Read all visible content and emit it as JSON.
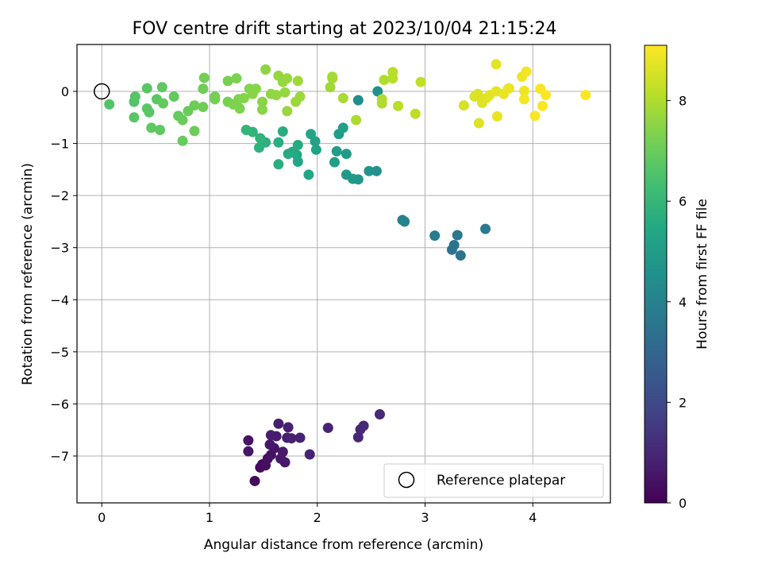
{
  "chart_data": {
    "type": "scatter",
    "title": "FOV centre drift starting at 2023/10/04 21:15:24",
    "xlabel": "Angular distance from reference (arcmin)",
    "ylabel": "Rotation from reference (arcmin)",
    "xlim": [
      -0.23,
      4.72
    ],
    "ylim": [
      -7.9,
      0.9
    ],
    "xticks": [
      0,
      1,
      2,
      3,
      4
    ],
    "yticks": [
      0,
      -1,
      -2,
      -3,
      -4,
      -5,
      -6,
      -7
    ],
    "grid": true,
    "colorbar": {
      "label": "Hours from first FF file",
      "colormap": "viridis",
      "range": [
        0,
        9.1
      ],
      "ticks": [
        0,
        2,
        4,
        6,
        8
      ]
    },
    "reference": {
      "x": 0,
      "y": 0,
      "label": "Reference platepar"
    },
    "legend": {
      "placement": "lower-right",
      "entries": [
        "Reference platepar"
      ]
    },
    "points": [
      {
        "x": 1.42,
        "y": -7.48,
        "h": 0.2
      },
      {
        "x": 1.47,
        "y": -7.22,
        "h": 0.25
      },
      {
        "x": 1.49,
        "y": -7.16,
        "h": 0.3
      },
      {
        "x": 1.52,
        "y": -7.18,
        "h": 0.35
      },
      {
        "x": 1.54,
        "y": -7.05,
        "h": 0.4
      },
      {
        "x": 1.57,
        "y": -6.98,
        "h": 0.45
      },
      {
        "x": 1.6,
        "y": -6.85,
        "h": 0.5
      },
      {
        "x": 1.56,
        "y": -6.78,
        "h": 0.55
      },
      {
        "x": 1.66,
        "y": -7.05,
        "h": 0.6
      },
      {
        "x": 1.7,
        "y": -7.12,
        "h": 0.62
      },
      {
        "x": 1.68,
        "y": -6.92,
        "h": 0.65
      },
      {
        "x": 1.72,
        "y": -6.65,
        "h": 0.7
      },
      {
        "x": 1.62,
        "y": -6.62,
        "h": 0.72
      },
      {
        "x": 1.57,
        "y": -6.6,
        "h": 0.75
      },
      {
        "x": 1.64,
        "y": -6.38,
        "h": 0.78
      },
      {
        "x": 1.73,
        "y": -6.45,
        "h": 0.8
      },
      {
        "x": 1.76,
        "y": -6.66,
        "h": 0.82
      },
      {
        "x": 1.84,
        "y": -6.65,
        "h": 0.85
      },
      {
        "x": 1.93,
        "y": -6.97,
        "h": 0.88
      },
      {
        "x": 1.36,
        "y": -6.7,
        "h": 0.5
      },
      {
        "x": 1.36,
        "y": -6.91,
        "h": 0.55
      },
      {
        "x": 2.1,
        "y": -6.46,
        "h": 0.9
      },
      {
        "x": 2.38,
        "y": -6.64,
        "h": 0.95
      },
      {
        "x": 2.4,
        "y": -6.49,
        "h": 1.0
      },
      {
        "x": 2.43,
        "y": -6.42,
        "h": 1.0
      },
      {
        "x": 2.58,
        "y": -6.2,
        "h": 1.05
      },
      {
        "x": 3.56,
        "y": -2.64,
        "h": 3.7
      },
      {
        "x": 3.3,
        "y": -2.76,
        "h": 3.6
      },
      {
        "x": 3.27,
        "y": -2.95,
        "h": 3.55
      },
      {
        "x": 3.25,
        "y": -3.04,
        "h": 3.5
      },
      {
        "x": 3.33,
        "y": -3.15,
        "h": 3.45
      },
      {
        "x": 3.09,
        "y": -2.77,
        "h": 3.8
      },
      {
        "x": 2.79,
        "y": -2.47,
        "h": 4.0
      },
      {
        "x": 2.81,
        "y": -2.5,
        "h": 4.05
      },
      {
        "x": 2.56,
        "y": 0.0,
        "h": 4.5
      },
      {
        "x": 2.38,
        "y": -0.17,
        "h": 4.4
      },
      {
        "x": 2.55,
        "y": -1.53,
        "h": 4.6
      },
      {
        "x": 2.48,
        "y": -1.53,
        "h": 4.7
      },
      {
        "x": 2.38,
        "y": -1.69,
        "h": 4.8
      },
      {
        "x": 2.33,
        "y": -1.68,
        "h": 4.85
      },
      {
        "x": 2.27,
        "y": -1.6,
        "h": 4.9
      },
      {
        "x": 2.27,
        "y": -1.2,
        "h": 4.95
      },
      {
        "x": 2.18,
        "y": -1.15,
        "h": 5.0
      },
      {
        "x": 2.16,
        "y": -1.36,
        "h": 5.05
      },
      {
        "x": 2.2,
        "y": -0.82,
        "h": 5.0
      },
      {
        "x": 2.24,
        "y": -0.7,
        "h": 5.1
      },
      {
        "x": 1.98,
        "y": -0.96,
        "h": 5.2
      },
      {
        "x": 1.99,
        "y": -1.12,
        "h": 5.25
      },
      {
        "x": 1.94,
        "y": -0.82,
        "h": 5.3
      },
      {
        "x": 1.92,
        "y": -1.6,
        "h": 5.35
      },
      {
        "x": 1.82,
        "y": -1.35,
        "h": 5.4
      },
      {
        "x": 1.81,
        "y": -1.22,
        "h": 5.45
      },
      {
        "x": 1.77,
        "y": -1.16,
        "h": 5.5
      },
      {
        "x": 1.73,
        "y": -1.2,
        "h": 5.55
      },
      {
        "x": 1.82,
        "y": -1.03,
        "h": 5.6
      },
      {
        "x": 1.68,
        "y": -0.77,
        "h": 5.65
      },
      {
        "x": 1.64,
        "y": -0.98,
        "h": 5.7
      },
      {
        "x": 1.64,
        "y": -1.4,
        "h": 5.7
      },
      {
        "x": 1.52,
        "y": -0.98,
        "h": 5.75
      },
      {
        "x": 1.46,
        "y": -1.08,
        "h": 5.8
      },
      {
        "x": 1.47,
        "y": -0.9,
        "h": 5.85
      },
      {
        "x": 1.4,
        "y": -0.78,
        "h": 5.9
      },
      {
        "x": 1.34,
        "y": -0.74,
        "h": 5.95
      },
      {
        "x": 0.07,
        "y": -0.25,
        "h": 6.6
      },
      {
        "x": 0.3,
        "y": -0.5,
        "h": 6.7
      },
      {
        "x": 0.3,
        "y": -0.2,
        "h": 6.6
      },
      {
        "x": 0.31,
        "y": -0.1,
        "h": 6.65
      },
      {
        "x": 0.42,
        "y": 0.06,
        "h": 6.7
      },
      {
        "x": 0.42,
        "y": -0.33,
        "h": 6.75
      },
      {
        "x": 0.44,
        "y": -0.4,
        "h": 6.7
      },
      {
        "x": 0.46,
        "y": -0.7,
        "h": 6.8
      },
      {
        "x": 0.51,
        "y": -0.15,
        "h": 6.75
      },
      {
        "x": 0.54,
        "y": -0.74,
        "h": 6.8
      },
      {
        "x": 0.56,
        "y": 0.08,
        "h": 6.85
      },
      {
        "x": 0.57,
        "y": -0.23,
        "h": 6.9
      },
      {
        "x": 0.67,
        "y": -0.1,
        "h": 6.9
      },
      {
        "x": 0.71,
        "y": -0.47,
        "h": 6.95
      },
      {
        "x": 0.75,
        "y": -0.55,
        "h": 7.0
      },
      {
        "x": 0.75,
        "y": -0.95,
        "h": 6.95
      },
      {
        "x": 0.8,
        "y": -0.38,
        "h": 7.0
      },
      {
        "x": 0.86,
        "y": -0.76,
        "h": 7.05
      },
      {
        "x": 0.86,
        "y": -0.27,
        "h": 7.05
      },
      {
        "x": 0.94,
        "y": 0.05,
        "h": 7.1
      },
      {
        "x": 0.94,
        "y": -0.3,
        "h": 7.1
      },
      {
        "x": 0.95,
        "y": 0.26,
        "h": 7.15
      },
      {
        "x": 1.05,
        "y": -0.1,
        "h": 7.2
      },
      {
        "x": 1.05,
        "y": -0.15,
        "h": 7.2
      },
      {
        "x": 1.17,
        "y": 0.2,
        "h": 7.25
      },
      {
        "x": 1.17,
        "y": -0.2,
        "h": 7.25
      },
      {
        "x": 1.22,
        "y": -0.25,
        "h": 7.3
      },
      {
        "x": 1.25,
        "y": 0.25,
        "h": 7.3
      },
      {
        "x": 1.27,
        "y": -0.15,
        "h": 7.35
      },
      {
        "x": 1.28,
        "y": -0.33,
        "h": 7.35
      },
      {
        "x": 1.32,
        "y": -0.13,
        "h": 7.4
      },
      {
        "x": 1.37,
        "y": 0.05,
        "h": 7.4
      },
      {
        "x": 1.4,
        "y": -0.05,
        "h": 7.45
      },
      {
        "x": 1.43,
        "y": 0.05,
        "h": 7.45
      },
      {
        "x": 1.49,
        "y": -0.2,
        "h": 7.5
      },
      {
        "x": 1.49,
        "y": -0.35,
        "h": 7.5
      },
      {
        "x": 1.52,
        "y": 0.42,
        "h": 7.55
      },
      {
        "x": 1.57,
        "y": -0.05,
        "h": 7.55
      },
      {
        "x": 1.62,
        "y": -0.07,
        "h": 7.6
      },
      {
        "x": 1.64,
        "y": 0.3,
        "h": 7.6
      },
      {
        "x": 1.68,
        "y": 0.18,
        "h": 7.65
      },
      {
        "x": 1.7,
        "y": -0.02,
        "h": 7.65
      },
      {
        "x": 1.72,
        "y": 0.25,
        "h": 7.7
      },
      {
        "x": 1.72,
        "y": -0.38,
        "h": 7.7
      },
      {
        "x": 1.8,
        "y": -0.2,
        "h": 7.75
      },
      {
        "x": 1.84,
        "y": -0.1,
        "h": 7.75
      },
      {
        "x": 1.82,
        "y": 0.2,
        "h": 7.8
      },
      {
        "x": 2.12,
        "y": 0.08,
        "h": 7.8
      },
      {
        "x": 2.14,
        "y": 0.28,
        "h": 7.85
      },
      {
        "x": 2.14,
        "y": 0.25,
        "h": 7.85
      },
      {
        "x": 2.24,
        "y": -0.13,
        "h": 7.9
      },
      {
        "x": 2.36,
        "y": -0.55,
        "h": 7.95
      },
      {
        "x": 2.6,
        "y": -0.15,
        "h": 8.0
      },
      {
        "x": 2.6,
        "y": -0.23,
        "h": 8.0
      },
      {
        "x": 2.62,
        "y": 0.22,
        "h": 8.05
      },
      {
        "x": 2.7,
        "y": 0.25,
        "h": 8.1
      },
      {
        "x": 2.7,
        "y": 0.37,
        "h": 8.1
      },
      {
        "x": 2.75,
        "y": -0.28,
        "h": 8.15
      },
      {
        "x": 2.91,
        "y": -0.43,
        "h": 8.2
      },
      {
        "x": 2.96,
        "y": 0.18,
        "h": 8.2
      },
      {
        "x": 3.36,
        "y": -0.27,
        "h": 8.55
      },
      {
        "x": 3.46,
        "y": -0.1,
        "h": 8.6
      },
      {
        "x": 3.49,
        "y": -0.05,
        "h": 8.6
      },
      {
        "x": 3.5,
        "y": -0.61,
        "h": 8.65
      },
      {
        "x": 3.53,
        "y": -0.22,
        "h": 8.65
      },
      {
        "x": 3.57,
        "y": -0.13,
        "h": 8.7
      },
      {
        "x": 3.6,
        "y": -0.07,
        "h": 8.7
      },
      {
        "x": 3.66,
        "y": 0.52,
        "h": 8.75
      },
      {
        "x": 3.66,
        "y": 0.0,
        "h": 8.75
      },
      {
        "x": 3.67,
        "y": -0.48,
        "h": 8.8
      },
      {
        "x": 3.73,
        "y": -0.05,
        "h": 8.8
      },
      {
        "x": 3.77,
        "y": 0.05,
        "h": 8.85
      },
      {
        "x": 3.78,
        "y": 0.06,
        "h": 8.85
      },
      {
        "x": 3.9,
        "y": 0.28,
        "h": 8.9
      },
      {
        "x": 3.92,
        "y": 0.01,
        "h": 8.9
      },
      {
        "x": 3.92,
        "y": -0.15,
        "h": 8.95
      },
      {
        "x": 3.94,
        "y": 0.38,
        "h": 8.95
      },
      {
        "x": 4.02,
        "y": -0.47,
        "h": 9.0
      },
      {
        "x": 4.07,
        "y": 0.05,
        "h": 9.0
      },
      {
        "x": 4.09,
        "y": -0.28,
        "h": 9.05
      },
      {
        "x": 4.12,
        "y": -0.07,
        "h": 9.05
      },
      {
        "x": 4.49,
        "y": -0.07,
        "h": 9.1
      }
    ]
  }
}
